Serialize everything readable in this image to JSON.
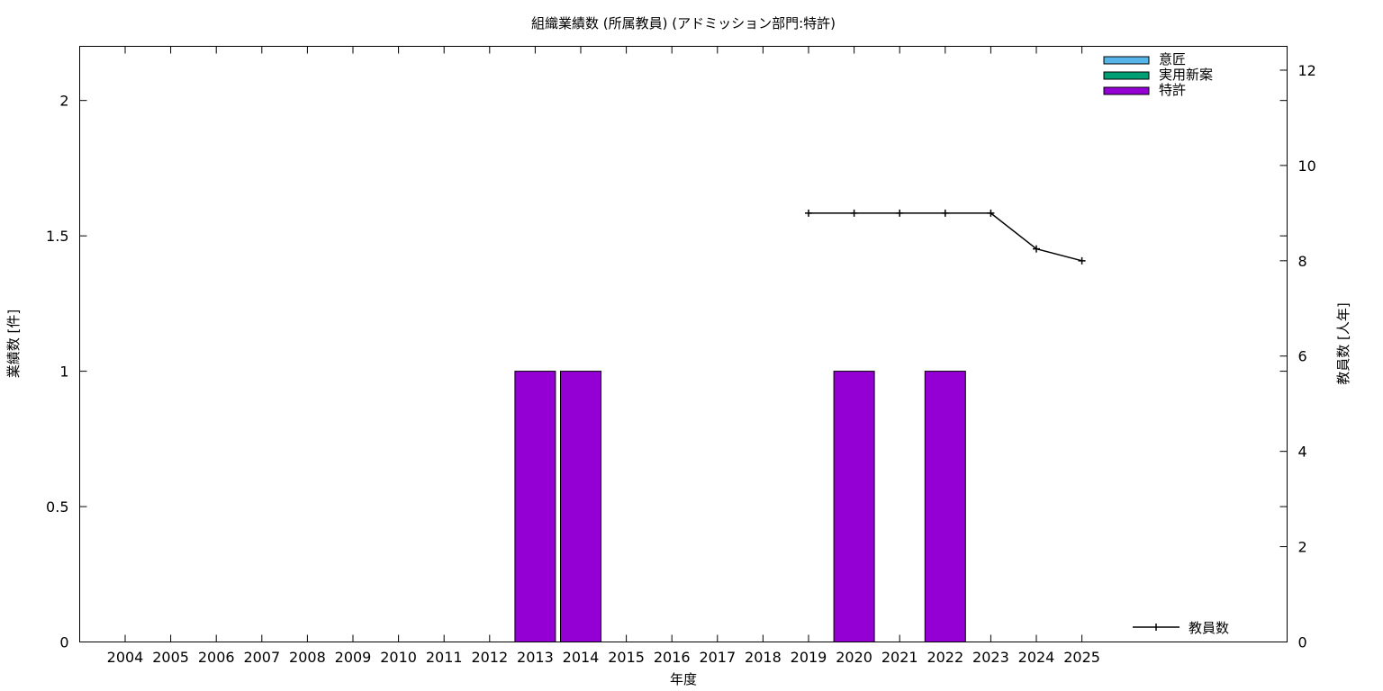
{
  "chart_data": {
    "type": "bar",
    "title": "組織業績数 (所属教員) (アドミッション部門:特許)",
    "xlabel": "年度",
    "ylabel": "業績数 [件]",
    "y2label": "教員数 [人年]",
    "categories": [
      "2004",
      "2005",
      "2006",
      "2007",
      "2008",
      "2009",
      "2010",
      "2011",
      "2012",
      "2013",
      "2014",
      "2015",
      "2016",
      "2017",
      "2018",
      "2019",
      "2020",
      "2021",
      "2022",
      "2023",
      "2024",
      "2025"
    ],
    "series": [
      {
        "name": "意匠",
        "color": "#56b4e9",
        "values": [
          0,
          0,
          0,
          0,
          0,
          0,
          0,
          0,
          0,
          0,
          0,
          0,
          0,
          0,
          0,
          0,
          0,
          0,
          0,
          0,
          0,
          0
        ]
      },
      {
        "name": "実用新案",
        "color": "#009e73",
        "values": [
          0,
          0,
          0,
          0,
          0,
          0,
          0,
          0,
          0,
          0,
          0,
          0,
          0,
          0,
          0,
          0,
          0,
          0,
          0,
          0,
          0,
          0
        ]
      },
      {
        "name": "特許",
        "color": "#9400d3",
        "values": [
          0,
          0,
          0,
          0,
          0,
          0,
          0,
          0,
          0,
          1,
          1,
          0,
          0,
          0,
          0,
          0,
          1,
          0,
          1,
          0,
          0,
          0
        ]
      }
    ],
    "line_series": {
      "name": "教員数",
      "axis": "right",
      "color": "#000000",
      "x": [
        "2019",
        "2020",
        "2021",
        "2022",
        "2023",
        "2024",
        "2025"
      ],
      "values": [
        9,
        9,
        9,
        9,
        9,
        8.25,
        8
      ]
    },
    "ylim": [
      0,
      2.2
    ],
    "y_ticks": [
      "0",
      "0.5",
      "1",
      "1.5",
      "2"
    ],
    "y2lim": [
      0,
      12.5
    ],
    "y2_ticks": [
      "0",
      "2",
      "4",
      "6",
      "8",
      "10",
      "12"
    ],
    "grid": false,
    "legend_position": "top-right",
    "line_legend_position": "bottom-right"
  }
}
